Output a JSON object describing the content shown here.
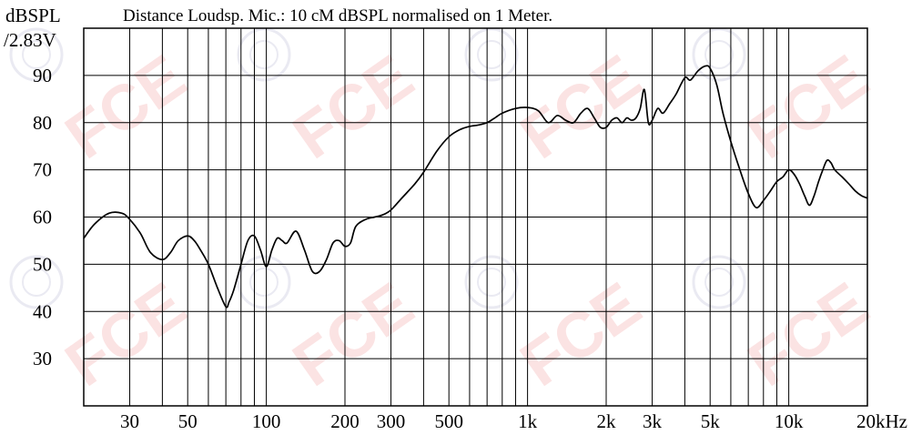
{
  "chart_data": {
    "type": "line",
    "title": "Distance Loudsp. Mic.: 10 cM dBSPL normalised on 1 Meter.",
    "ylabel": [
      "dBSPL",
      "/2.83V"
    ],
    "xlabel": "",
    "x_scale": "log",
    "xlim": [
      20,
      20000
    ],
    "ylim": [
      20,
      100
    ],
    "grid": true,
    "legend": "none",
    "x_tick_labels": [
      {
        "value": 30,
        "label": "30"
      },
      {
        "value": 50,
        "label": "50"
      },
      {
        "value": 100,
        "label": "100"
      },
      {
        "value": 200,
        "label": "200"
      },
      {
        "value": 300,
        "label": "300"
      },
      {
        "value": 500,
        "label": "500"
      },
      {
        "value": 1000,
        "label": "1k"
      },
      {
        "value": 2000,
        "label": "2k"
      },
      {
        "value": 3000,
        "label": "3k"
      },
      {
        "value": 5000,
        "label": "5k"
      },
      {
        "value": 10000,
        "label": "10k"
      },
      {
        "value": 20000,
        "label": "20kHz"
      }
    ],
    "y_tick_labels": [
      {
        "value": 90,
        "label": "90"
      },
      {
        "value": 80,
        "label": "80"
      },
      {
        "value": 70,
        "label": "70"
      },
      {
        "value": 60,
        "label": "60"
      },
      {
        "value": 50,
        "label": "50"
      },
      {
        "value": 40,
        "label": "40"
      },
      {
        "value": 30,
        "label": "30"
      }
    ],
    "series": [
      {
        "x": [
          20,
          22,
          25,
          28,
          30,
          33,
          36,
          40,
          43,
          46,
          50,
          53,
          56,
          60,
          65,
          70,
          72,
          75,
          80,
          85,
          90,
          95,
          100,
          105,
          110,
          115,
          120,
          130,
          140,
          150,
          160,
          170,
          180,
          190,
          200,
          210,
          220,
          240,
          260,
          280,
          300,
          330,
          370,
          400,
          450,
          500,
          550,
          600,
          650,
          700,
          750,
          800,
          900,
          1000,
          1100,
          1200,
          1300,
          1400,
          1500,
          1600,
          1700,
          1800,
          1900,
          2000,
          2100,
          2200,
          2300,
          2400,
          2500,
          2600,
          2700,
          2800,
          2900,
          3000,
          3150,
          3300,
          3500,
          3700,
          4000,
          4200,
          4500,
          4800,
          5000,
          5300,
          5600,
          6000,
          6500,
          7000,
          7500,
          8000,
          8500,
          9000,
          9500,
          10000,
          10500,
          11000,
          11500,
          12000,
          12500,
          13000,
          13500,
          14000,
          14500,
          15000,
          16000,
          17000,
          18000,
          19000,
          20000
        ],
        "y": [
          55.5,
          58.5,
          60.8,
          60.8,
          59.5,
          56.5,
          52.5,
          51.0,
          52.5,
          55.0,
          56.0,
          55.0,
          53.0,
          50.0,
          45.0,
          41.0,
          42.0,
          44.5,
          50.0,
          55.0,
          56.0,
          53.0,
          49.5,
          53.0,
          55.5,
          55.0,
          54.5,
          57.0,
          53.0,
          48.5,
          48.5,
          51.0,
          54.5,
          55.0,
          53.8,
          54.5,
          58.0,
          59.5,
          60.0,
          60.5,
          61.5,
          64.0,
          67.0,
          69.5,
          74.0,
          77.0,
          78.5,
          79.2,
          79.5,
          80.0,
          81.0,
          82.0,
          83.0,
          83.2,
          82.5,
          80.0,
          81.5,
          80.5,
          80.0,
          82.0,
          83.0,
          81.0,
          79.0,
          79.0,
          80.5,
          81.0,
          80.0,
          81.0,
          80.5,
          81.0,
          83.0,
          87.0,
          80.0,
          80.5,
          83.0,
          82.0,
          84.0,
          86.0,
          89.5,
          89.0,
          91.0,
          92.0,
          91.5,
          88.0,
          82.0,
          76.0,
          70.0,
          65.0,
          62.0,
          63.5,
          65.5,
          67.5,
          68.5,
          70.0,
          69.0,
          67.0,
          64.5,
          62.5,
          64.5,
          67.5,
          70.0,
          72.0,
          71.5,
          70.0,
          68.5,
          67.0,
          65.5,
          64.5,
          64.0
        ]
      }
    ]
  }
}
